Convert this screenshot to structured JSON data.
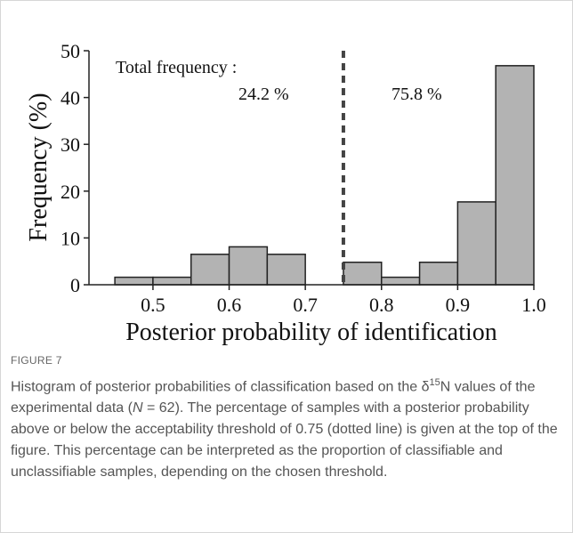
{
  "chart_data": {
    "type": "histogram",
    "xlabel": "Posterior probability of identification",
    "ylabel": "Frequency (%)",
    "bins": [
      0.45,
      0.5,
      0.55,
      0.6,
      0.65,
      0.7,
      0.75,
      0.8,
      0.85,
      0.9,
      0.95,
      1.0
    ],
    "values": [
      1.6,
      1.6,
      6.5,
      8.1,
      6.5,
      0,
      4.8,
      1.6,
      4.8,
      17.7,
      46.8
    ],
    "color": "#b3b3b3",
    "xlim": [
      0.416,
      1.0
    ],
    "xticks": [
      0.5,
      0.6,
      0.7,
      0.8,
      0.9,
      {
        "value": 1.0,
        "label": "1.0"
      }
    ],
    "ylim": [
      0,
      50
    ],
    "yticks": [
      0,
      10,
      20,
      30,
      40,
      50
    ],
    "threshold": 0.75,
    "annotations": [
      "Total frequency :",
      "24.2 %",
      "75.8 %"
    ]
  },
  "figure_label": "FIGURE 7",
  "caption": [
    "Histogram of posterior probabilities of classification based on the δ",
    "15",
    "N values of the experimental data (",
    "N",
    " = 62). The percentage of samples with a posterior probability above or below the acceptability threshold of 0.75 (dotted line) is given at the top of the figure. This percentage can be interpreted as the proportion of classifiable and unclassifiable samples, depending on the chosen threshold."
  ]
}
